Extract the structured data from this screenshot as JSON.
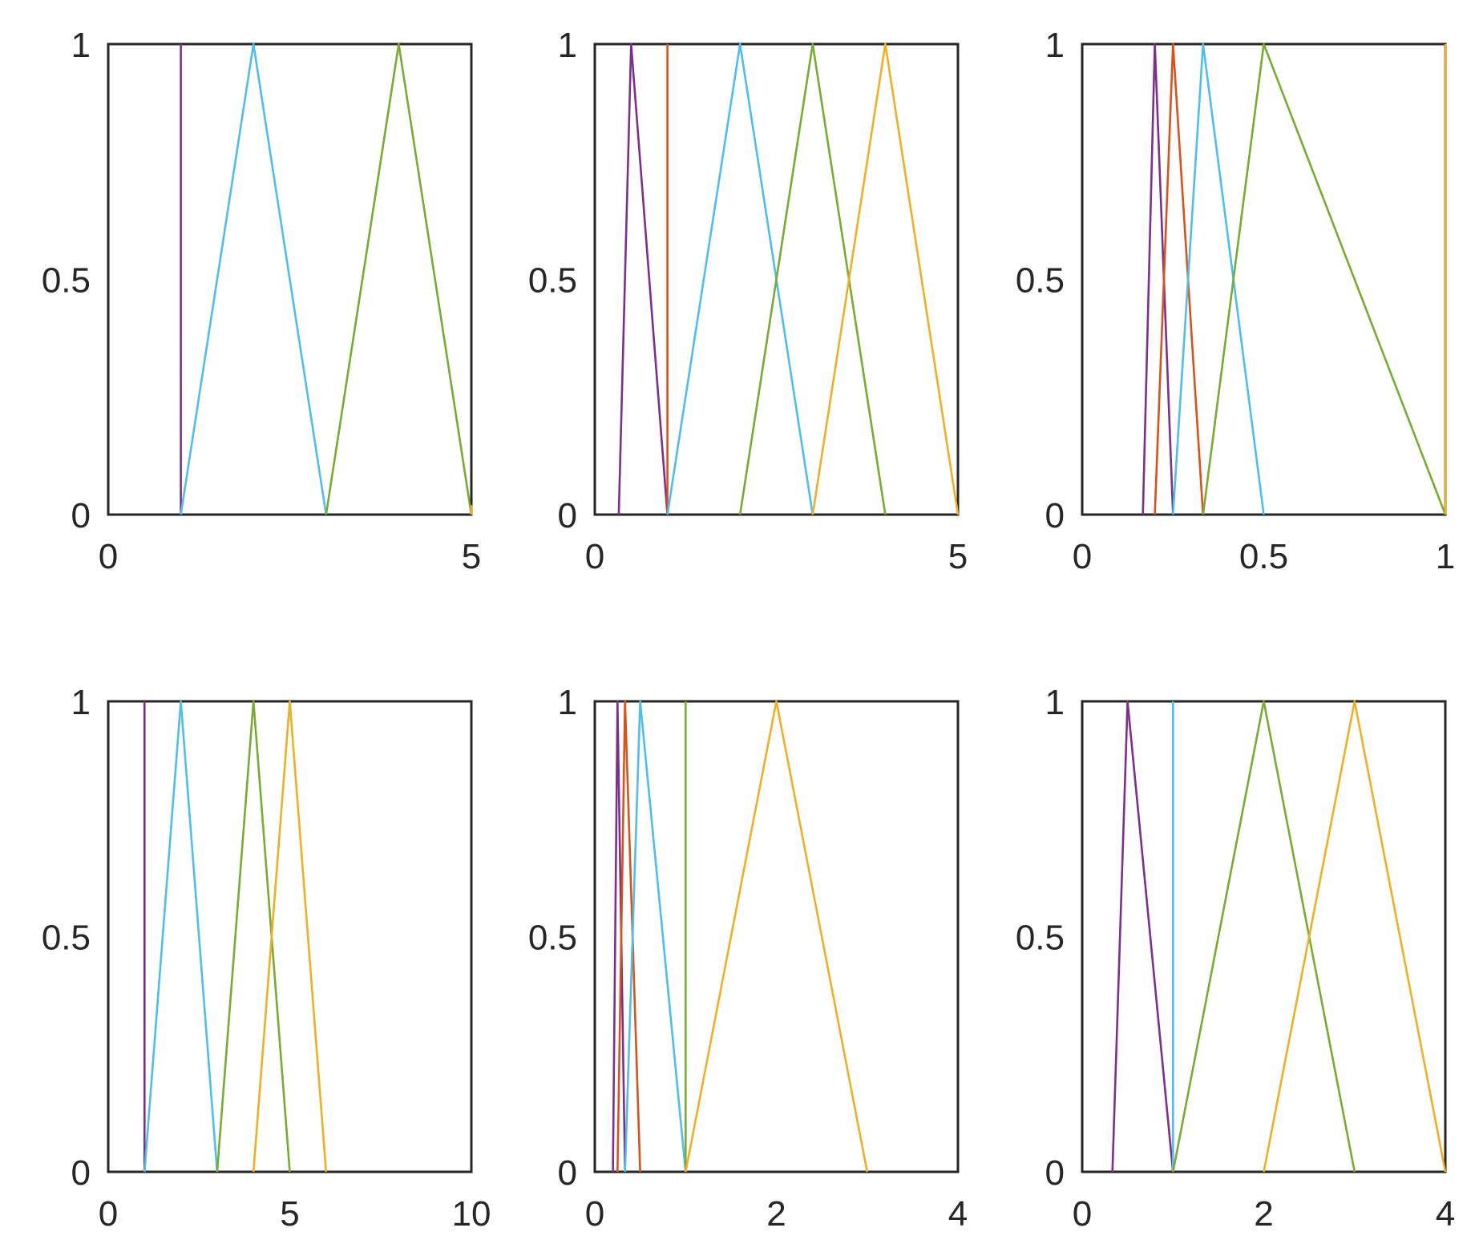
{
  "chart_data": [
    {
      "type": "line",
      "xlim": [
        0,
        5
      ],
      "ylim": [
        0,
        1
      ],
      "xticks": [
        {
          "v": 0,
          "label": "0"
        },
        {
          "v": 5,
          "label": "5"
        }
      ],
      "yticks": [
        {
          "v": 0,
          "label": "0"
        },
        {
          "v": 0.5,
          "label": "0.5"
        },
        {
          "v": 1,
          "label": "1"
        }
      ],
      "grid": false,
      "series": [
        {
          "color": "#7E2F8E",
          "x": [
            1,
            1
          ],
          "y": [
            0,
            1
          ]
        },
        {
          "color": "#4DBEEE",
          "x": [
            1,
            2,
            3
          ],
          "y": [
            0,
            1,
            0
          ]
        },
        {
          "color": "#77AC30",
          "x": [
            3,
            4,
            5
          ],
          "y": [
            0,
            1,
            0
          ]
        },
        {
          "color": "#EDB120",
          "x": [
            5,
            5
          ],
          "y": [
            0,
            0.02
          ]
        }
      ]
    },
    {
      "type": "line",
      "xlim": [
        0,
        5
      ],
      "ylim": [
        0,
        1
      ],
      "xticks": [
        {
          "v": 0,
          "label": "0"
        },
        {
          "v": 5,
          "label": "5"
        }
      ],
      "yticks": [
        {
          "v": 0,
          "label": "0"
        },
        {
          "v": 0.5,
          "label": "0.5"
        },
        {
          "v": 1,
          "label": "1"
        }
      ],
      "grid": false,
      "series": [
        {
          "color": "#7E2F8E",
          "x": [
            0.33,
            0.5,
            1
          ],
          "y": [
            0,
            1,
            0
          ]
        },
        {
          "color": "#D95319",
          "x": [
            1,
            1
          ],
          "y": [
            0,
            1
          ]
        },
        {
          "color": "#4DBEEE",
          "x": [
            1,
            2,
            3
          ],
          "y": [
            0,
            1,
            0
          ]
        },
        {
          "color": "#77AC30",
          "x": [
            2,
            3,
            4
          ],
          "y": [
            0,
            1,
            0
          ]
        },
        {
          "color": "#EDB120",
          "x": [
            3,
            4,
            5
          ],
          "y": [
            0,
            1,
            0
          ]
        }
      ]
    },
    {
      "type": "line",
      "xlim": [
        0,
        1
      ],
      "ylim": [
        0,
        1
      ],
      "xticks": [
        {
          "v": 0,
          "label": "0"
        },
        {
          "v": 0.5,
          "label": "0.5"
        },
        {
          "v": 1,
          "label": "1"
        }
      ],
      "yticks": [
        {
          "v": 0,
          "label": "0"
        },
        {
          "v": 0.5,
          "label": "0.5"
        },
        {
          "v": 1,
          "label": "1"
        }
      ],
      "grid": false,
      "series": [
        {
          "color": "#7E2F8E",
          "x": [
            0.167,
            0.2,
            0.25
          ],
          "y": [
            0,
            1,
            0
          ]
        },
        {
          "color": "#D95319",
          "x": [
            0.2,
            0.25,
            0.333
          ],
          "y": [
            0,
            1,
            0
          ]
        },
        {
          "color": "#4DBEEE",
          "x": [
            0.25,
            0.333,
            0.5
          ],
          "y": [
            0,
            1,
            0
          ]
        },
        {
          "color": "#77AC30",
          "x": [
            0.333,
            0.5,
            1
          ],
          "y": [
            0,
            1,
            0
          ]
        },
        {
          "color": "#EDB120",
          "x": [
            1,
            1
          ],
          "y": [
            0,
            1
          ]
        }
      ]
    },
    {
      "type": "line",
      "xlim": [
        0,
        10
      ],
      "ylim": [
        0,
        1
      ],
      "xticks": [
        {
          "v": 0,
          "label": "0"
        },
        {
          "v": 5,
          "label": "5"
        },
        {
          "v": 10,
          "label": "10"
        }
      ],
      "yticks": [
        {
          "v": 0,
          "label": "0"
        },
        {
          "v": 0.5,
          "label": "0.5"
        },
        {
          "v": 1,
          "label": "1"
        }
      ],
      "grid": false,
      "series": [
        {
          "color": "#7E2F8E",
          "x": [
            1,
            1
          ],
          "y": [
            0,
            1
          ]
        },
        {
          "color": "#4DBEEE",
          "x": [
            1,
            2,
            3
          ],
          "y": [
            0,
            1,
            0
          ]
        },
        {
          "color": "#77AC30",
          "x": [
            3,
            4,
            5
          ],
          "y": [
            0,
            1,
            0
          ]
        },
        {
          "color": "#EDB120",
          "x": [
            4,
            5,
            6
          ],
          "y": [
            0,
            1,
            0
          ]
        }
      ]
    },
    {
      "type": "line",
      "xlim": [
        0,
        4
      ],
      "ylim": [
        0,
        1
      ],
      "xticks": [
        {
          "v": 0,
          "label": "0"
        },
        {
          "v": 2,
          "label": "2"
        },
        {
          "v": 4,
          "label": "4"
        }
      ],
      "yticks": [
        {
          "v": 0,
          "label": "0"
        },
        {
          "v": 0.5,
          "label": "0.5"
        },
        {
          "v": 1,
          "label": "1"
        }
      ],
      "grid": false,
      "series": [
        {
          "color": "#7E2F8E",
          "x": [
            0.2,
            0.25,
            0.333
          ],
          "y": [
            0,
            1,
            0
          ]
        },
        {
          "color": "#D95319",
          "x": [
            0.25,
            0.333,
            0.5
          ],
          "y": [
            0,
            1,
            0
          ]
        },
        {
          "color": "#4DBEEE",
          "x": [
            0.333,
            0.5,
            1
          ],
          "y": [
            0,
            1,
            0
          ]
        },
        {
          "color": "#77AC30",
          "x": [
            1,
            1
          ],
          "y": [
            0,
            1
          ]
        },
        {
          "color": "#EDB120",
          "x": [
            1,
            2,
            3
          ],
          "y": [
            0,
            1,
            0
          ]
        }
      ]
    },
    {
      "type": "line",
      "xlim": [
        0,
        4
      ],
      "ylim": [
        0,
        1
      ],
      "xticks": [
        {
          "v": 0,
          "label": "0"
        },
        {
          "v": 2,
          "label": "2"
        },
        {
          "v": 4,
          "label": "4"
        }
      ],
      "yticks": [
        {
          "v": 0,
          "label": "0"
        },
        {
          "v": 0.5,
          "label": "0.5"
        },
        {
          "v": 1,
          "label": "1"
        }
      ],
      "grid": false,
      "series": [
        {
          "color": "#7E2F8E",
          "x": [
            0.333,
            0.5,
            1
          ],
          "y": [
            0,
            1,
            0
          ]
        },
        {
          "color": "#4DBEEE",
          "x": [
            1,
            1
          ],
          "y": [
            0,
            1
          ]
        },
        {
          "color": "#77AC30",
          "x": [
            1,
            2,
            3
          ],
          "y": [
            0,
            1,
            0
          ]
        },
        {
          "color": "#EDB120",
          "x": [
            2,
            3,
            4
          ],
          "y": [
            0,
            1,
            0
          ]
        }
      ]
    }
  ]
}
